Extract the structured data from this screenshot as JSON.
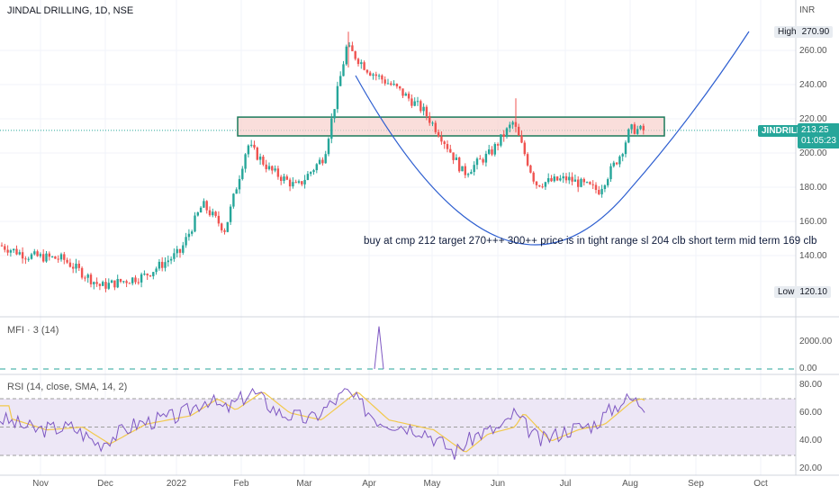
{
  "header": {
    "title": "JINDAL DRILLING, 1D, NSE",
    "currency": "INR"
  },
  "annotation": "buy at cmp 212 target 270+++ 300++ price is in tight range  sl 204 clb short term mid term 169 clb",
  "price_panel": {
    "symbol_tag": "JINDRILL",
    "last_price": "213.25",
    "countdown": "01:05:23",
    "high_label": "High",
    "high_value": "270.90",
    "low_label": "Low",
    "low_value": "120.10",
    "y_ticks": [
      "260.00",
      "240.00",
      "220.00",
      "200.00",
      "180.00",
      "160.00",
      "140.00"
    ]
  },
  "mfi_panel": {
    "label": "MFI · 3 (14)",
    "y_ticks": [
      "2000.00",
      "0.00"
    ]
  },
  "rsi_panel": {
    "label": "RSI (14, close, SMA, 14, 2)",
    "y_ticks": [
      "80.00",
      "60.00",
      "40.00",
      "20.00"
    ]
  },
  "x_axis": {
    "ticks": [
      "Nov",
      "Dec",
      "2022",
      "Feb",
      "Mar",
      "Apr",
      "May",
      "Jun",
      "Jul",
      "Aug",
      "Sep",
      "Oct"
    ]
  },
  "colors": {
    "up": "#26a69a",
    "down": "#ef5350",
    "zone_fill": "#f8d0cc",
    "zone_border": "#1b7a5a",
    "curve": "#2e5fd0",
    "rsi_line": "#7e57c2",
    "rsi_ma": "#f2c94c",
    "rsi_band": "#ede7f6"
  },
  "chart_data": [
    {
      "type": "candlestick",
      "title": "JINDAL DRILLING, 1D, NSE",
      "ylim": [
        110,
        275
      ],
      "x": [
        "Nov",
        "Dec",
        "2022",
        "Feb",
        "Mar",
        "Apr",
        "May",
        "Jun",
        "Jul",
        "Aug"
      ],
      "close": [
        148,
        125,
        135,
        205,
        195,
        250,
        205,
        200,
        178,
        213.25
      ],
      "high": 270.9,
      "low": 120.1,
      "last": 213.25,
      "zone": [
        210,
        221
      ],
      "grid": true
    },
    {
      "type": "line",
      "title": "MFI · 3 (14)",
      "ylim": [
        0,
        2800
      ],
      "series": [
        {
          "values": [
            0,
            0,
            0,
            0,
            0,
            2650,
            0,
            0,
            0,
            0
          ]
        }
      ]
    },
    {
      "type": "line",
      "title": "RSI (14, close, SMA, 14, 2)",
      "ylim": [
        20,
        85
      ],
      "series": [
        {
          "values": [
            55,
            40,
            55,
            75,
            60,
            70,
            30,
            55,
            45,
            70
          ]
        },
        {
          "values": [
            50,
            45,
            48,
            62,
            60,
            60,
            38,
            48,
            45,
            62
          ]
        }
      ]
    }
  ]
}
